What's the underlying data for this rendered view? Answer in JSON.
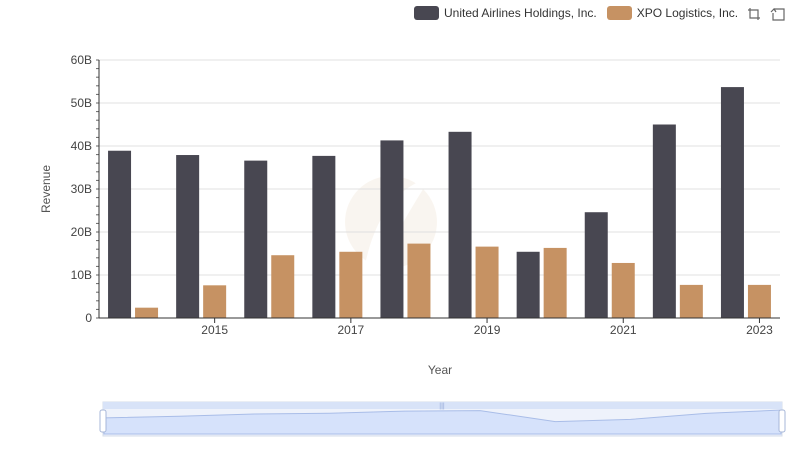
{
  "chart_data": {
    "type": "bar",
    "x": [
      2014,
      2015,
      2016,
      2017,
      2018,
      2019,
      2020,
      2021,
      2022,
      2023
    ],
    "x_tick_labels": [
      "2015",
      "2017",
      "2019",
      "2021",
      "2023"
    ],
    "xlabel": "Year",
    "ylabel": "Revenue",
    "ylim": [
      0,
      60
    ],
    "y_tick_labels": [
      "0",
      "10B",
      "20B",
      "30B",
      "40B",
      "50B",
      "60B"
    ],
    "grid": true,
    "legend_position": "top-right",
    "series": [
      {
        "name": "United Airlines Holdings, Inc.",
        "color": "#484751",
        "values": [
          38.9,
          37.9,
          36.6,
          37.7,
          41.3,
          43.3,
          15.4,
          24.6,
          45.0,
          53.7
        ]
      },
      {
        "name": "XPO Logistics, Inc.",
        "color": "#c69263",
        "values": [
          2.4,
          7.6,
          14.6,
          15.4,
          17.3,
          16.6,
          16.3,
          12.8,
          7.7,
          7.7
        ]
      }
    ]
  },
  "toolbox": {
    "zoom_icon": "zoom-icon",
    "restore_icon": "restore-icon"
  },
  "data_zoom": {
    "start_percent": 0,
    "end_percent": 100,
    "fill_color": "#d6e2fb"
  }
}
